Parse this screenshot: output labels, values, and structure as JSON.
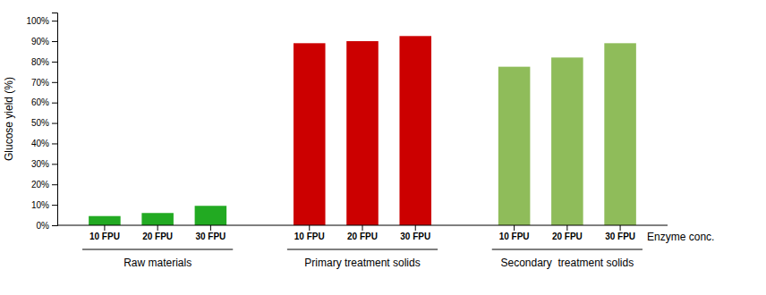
{
  "chart_data": {
    "type": "bar",
    "ylabel": "Glucose yield (%)",
    "xlabel": "Enzyme conc.",
    "categories": [
      "10 FPU",
      "20 FPU",
      "30 FPU"
    ],
    "series": [
      {
        "name": "Raw materials",
        "color": "#22AA22",
        "values": [
          4.5,
          6.0,
          9.5
        ]
      },
      {
        "name": "Primary treatment solids",
        "color": "#CC0000",
        "values": [
          89.0,
          90.0,
          92.5
        ]
      },
      {
        "name": "Secondary  treatment solids",
        "color": "#8FBC5A",
        "values": [
          77.5,
          82.0,
          89.0
        ]
      }
    ],
    "ylim": [
      0,
      104
    ],
    "yticks": [
      {
        "value": 0,
        "label": "0%"
      },
      {
        "value": 10,
        "label": "10%"
      },
      {
        "value": 20,
        "label": "20%"
      },
      {
        "value": 30,
        "label": "30%"
      },
      {
        "value": 40,
        "label": "40%"
      },
      {
        "value": 50,
        "label": "50%"
      },
      {
        "value": 60,
        "label": "60%"
      },
      {
        "value": 70,
        "label": "70%"
      },
      {
        "value": 80,
        "label": "80%"
      },
      {
        "value": 90,
        "label": "90%"
      },
      {
        "value": 100,
        "label": "100%"
      }
    ],
    "grid": false
  }
}
